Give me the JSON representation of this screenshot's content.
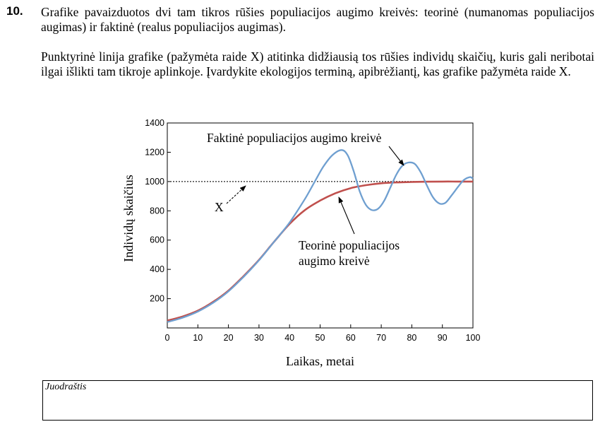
{
  "question": {
    "number": "10.",
    "paragraph1": "Grafike pavaizduotos dvi tam tikros rūšies populiacijos augimo kreivės: teorinė (numanomas populiacijos augimas) ir faktinė (realus populiacijos augimas).",
    "paragraph2": "Punktyrinė linija grafike (pažymėta raide X) atitinka didžiausią tos rūšies individų skaičių, kuris gali neribotai ilgai išlikti tam tikroje aplinkoje. Įvardykite ekologijos terminą, apibrėžiantį, kas grafike pažymėta raide X."
  },
  "chart_data": {
    "type": "line",
    "xlabel": "Laikas, metai",
    "ylabel": "Individų skaičius",
    "xlim": [
      0,
      100
    ],
    "ylim": [
      0,
      1400
    ],
    "xticks": [
      0,
      10,
      20,
      30,
      40,
      50,
      60,
      70,
      80,
      90,
      100
    ],
    "yticks": [
      200,
      400,
      600,
      800,
      1000,
      1200,
      1400
    ],
    "grid": false,
    "annotations": [
      {
        "text": "Faktinė populiacijos augimo kreivė",
        "target": "actual"
      },
      {
        "text": "Teorinė populiacijos augimo kreivė",
        "target": "theoretical"
      },
      {
        "text": "X",
        "target": "capacity"
      }
    ],
    "series": [
      {
        "id": "theoretical",
        "color": "#c0504d",
        "x": [
          0,
          5,
          10,
          15,
          20,
          25,
          30,
          35,
          40,
          45,
          50,
          55,
          60,
          65,
          70,
          75,
          80,
          85,
          90,
          95,
          100
        ],
        "y": [
          50,
          78,
          118,
          178,
          255,
          355,
          465,
          590,
          710,
          805,
          870,
          920,
          955,
          975,
          988,
          994,
          997,
          999,
          1000,
          1000,
          1000
        ]
      },
      {
        "id": "actual",
        "color": "#6f9fd0",
        "x": [
          0,
          5,
          10,
          15,
          20,
          25,
          30,
          35,
          40,
          45,
          48,
          51,
          54,
          57,
          59,
          61,
          63,
          65,
          67,
          69,
          71,
          73,
          75,
          77,
          79,
          81,
          83,
          85,
          87,
          89,
          91,
          93,
          95,
          97,
          99,
          100
        ],
        "y": [
          40,
          70,
          112,
          172,
          250,
          350,
          462,
          590,
          720,
          880,
          990,
          1100,
          1180,
          1215,
          1180,
          1070,
          930,
          840,
          805,
          815,
          870,
          960,
          1050,
          1110,
          1130,
          1120,
          1060,
          970,
          890,
          850,
          855,
          905,
          960,
          1010,
          1030,
          1020
        ]
      },
      {
        "id": "capacity",
        "style": "dotted",
        "color": "#555555",
        "x": [
          0,
          100
        ],
        "y": [
          1000,
          1000
        ]
      }
    ]
  },
  "draft": {
    "label": "Juodraštis"
  }
}
